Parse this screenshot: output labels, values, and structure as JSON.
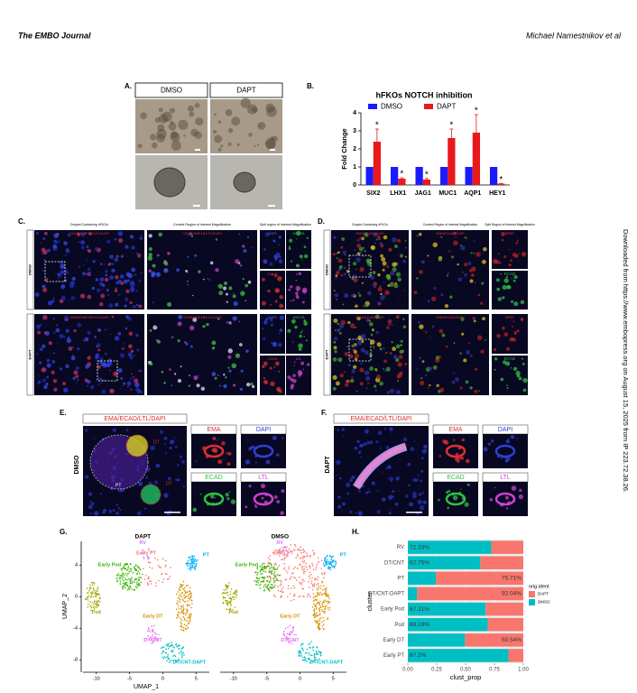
{
  "header": {
    "journal": "The EMBO Journal",
    "authors": "Michael Namestnikov et al"
  },
  "side_note": "Downloaded from https://www.embopress.org on August 15, 2025 from IP 223.72.38.26.",
  "figure": {
    "a": {
      "letter": "A.",
      "conditions": [
        "DMSO",
        "DAPT"
      ]
    },
    "b": {
      "letter": "B."
    },
    "c": {
      "letter": "C.",
      "columns": [
        "Droplet Containing hFKOs",
        "Context Region of Interest Magnification",
        "Split region of Interest Magnification"
      ],
      "rows": [
        "DMSO",
        "DAPT"
      ],
      "merge_label": "CDH6/HNF1B/LTL/DAPI",
      "split_labels": [
        "DAPI",
        "HNF1B",
        "CDH6",
        "LTL"
      ]
    },
    "d": {
      "letter": "D.",
      "columns": [
        "Droplet Containing hFKOs",
        "Context Region of Interest Magnification",
        "Split Region of Interest Magnification"
      ],
      "rows": [
        "DMSO",
        "DAPT"
      ],
      "merge_label": "EMA/ECAD/DAPI",
      "split_labels": [
        "EMA",
        "ECAD"
      ]
    },
    "e": {
      "letter": "E.",
      "row": "DMSO",
      "merge_label": "EMA/ECAD/LTL/DAPI",
      "split_labels": [
        "EMA",
        "DAPI",
        "ECAD",
        "LTL"
      ],
      "annotations": [
        "DT",
        "PT",
        "DT"
      ]
    },
    "f": {
      "letter": "F.",
      "row": "DAPT",
      "merge_label": "EMA/ECAD/LTL/DAPI",
      "split_labels": [
        "EMA",
        "DAPI",
        "ECAD",
        "LTL"
      ]
    },
    "g": {
      "letter": "G.",
      "panels": [
        "DAPT",
        "DMSO"
      ],
      "xlabel": "UMAP_1",
      "ylabel": "UMAP_2",
      "xticks": [
        -10,
        -5,
        0,
        5
      ],
      "yticks": [
        4,
        0,
        -4,
        -8
      ],
      "clusters": [
        {
          "name": "Pod",
          "color": "#a3a500"
        },
        {
          "name": "Early Pod",
          "color": "#39b600"
        },
        {
          "name": "RV",
          "color": "#d575fe"
        },
        {
          "name": "Early PT",
          "color": "#f8766d"
        },
        {
          "name": "PT",
          "color": "#00b0f6"
        },
        {
          "name": "Early DT",
          "color": "#d89000"
        },
        {
          "name": "DT/CNT",
          "color": "#e76bf3"
        },
        {
          "name": "DT/CNT-DAPT",
          "color": "#00bfc4"
        }
      ]
    },
    "h": {
      "letter": "H."
    }
  },
  "chart_data": [
    {
      "type": "bar",
      "title": "hFKOs NOTCH inhibition",
      "ylabel": "Fold Change",
      "categories": [
        "SIX2",
        "LHX1",
        "JAG1",
        "MUC1",
        "AQP1",
        "HEY1"
      ],
      "series": [
        {
          "name": "DMSO",
          "color": "#1a1aff",
          "values": [
            1,
            1,
            1,
            1,
            1,
            1
          ]
        },
        {
          "name": "DAPT",
          "color": "#e8191b",
          "values": [
            2.4,
            0.35,
            0.3,
            2.6,
            2.9,
            0.07
          ],
          "errors": [
            0.7,
            0.05,
            0.06,
            0.5,
            1.0,
            0.02
          ],
          "annotations": [
            "*",
            "*",
            "*",
            "*",
            "*",
            "*"
          ]
        }
      ],
      "ylim": [
        0,
        4
      ],
      "yticks": [
        0,
        1,
        2,
        3,
        4
      ]
    },
    {
      "type": "stacked_barh",
      "xlabel": "clust_prop",
      "ylabel": "cluster",
      "legend_title": "orig.ident",
      "categories": [
        "RV",
        "DT/CNT",
        "PT",
        "DT/CNT-DAPT",
        "Early Pod",
        "Pod",
        "Early DT",
        "Early PT"
      ],
      "series": [
        {
          "name": "DAPT",
          "color": "#f8766d",
          "values": [
            0.2767,
            0.3725,
            0.7571,
            0.9204,
            0.3269,
            0.3081,
            0.5054,
            0.128
          ],
          "value_labels": [
            null,
            null,
            "75.71%",
            "92.04%",
            null,
            null,
            "50.54%",
            null
          ]
        },
        {
          "name": "DMSO",
          "color": "#00bfc4",
          "values": [
            0.7233,
            0.6275,
            0.2429,
            0.0796,
            0.6731,
            0.6919,
            0.4946,
            0.872
          ],
          "value_labels": [
            "72.33%",
            "62.75%",
            null,
            null,
            "67.31%",
            "69.19%",
            null,
            "87.2%"
          ]
        }
      ],
      "xlim": [
        0,
        1
      ],
      "xticks": [
        {
          "value": 0,
          "label": "0.00"
        },
        0.25,
        {
          "value": 0.5,
          "label": "0.50"
        },
        0.75,
        {
          "value": 1,
          "label": "1.00"
        }
      ],
      "grid": true
    }
  ]
}
